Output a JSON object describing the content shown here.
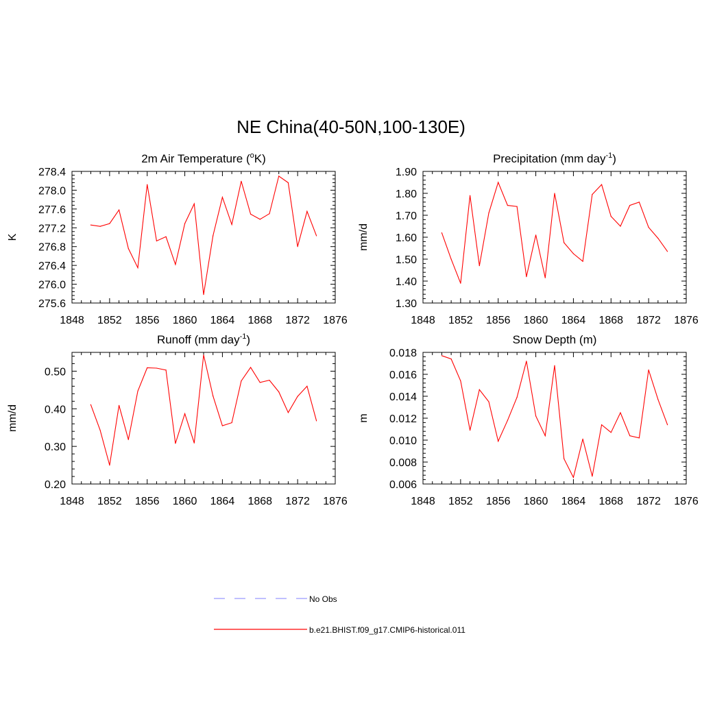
{
  "page": {
    "title": "NE China(40-50N,100-130E)"
  },
  "legend": {
    "placement": "bottom-center",
    "entries": [
      {
        "label": "No Obs",
        "color": "#9a9aff",
        "style": "dashed"
      },
      {
        "label": "b.e21.BHIST.f09_g17.CMIP6-historical.011",
        "color": "#ff0000",
        "style": "solid"
      }
    ]
  },
  "chart_data": [
    {
      "type": "line",
      "title": "2m Air Temperature (",
      "title_sup": "o",
      "title_suffix": "K)",
      "ylabel": "K",
      "xlim": [
        1848,
        1876
      ],
      "ylim": [
        275.6,
        278.4
      ],
      "xticks": [
        "1848",
        "1852",
        "1856",
        "1860",
        "1864",
        "1868",
        "1872",
        "1876"
      ],
      "yticks": [
        "275.6",
        "276.0",
        "276.4",
        "276.8",
        "277.2",
        "277.6",
        "278.0",
        "278.4"
      ],
      "grid": false,
      "line_color": "#ff0000",
      "series": [
        {
          "x": [
            1850,
            1851,
            1852,
            1853,
            1854,
            1855,
            1856,
            1857,
            1858,
            1859,
            1860,
            1861,
            1862,
            1863,
            1864,
            1865,
            1866,
            1867,
            1868,
            1869,
            1870,
            1871,
            1872,
            1873,
            1874
          ],
          "values": [
            277.26,
            277.23,
            277.29,
            277.58,
            276.76,
            276.35,
            278.12,
            276.92,
            277.01,
            276.42,
            277.29,
            277.71,
            275.78,
            277.03,
            277.85,
            277.27,
            278.19,
            277.49,
            277.38,
            277.5,
            278.3,
            278.16,
            276.8,
            277.55,
            277.03
          ]
        }
      ]
    },
    {
      "type": "line",
      "title": "Precipitation (mm day",
      "title_sup": "-1",
      "title_suffix": ")",
      "ylabel": "mm/d",
      "xlim": [
        1848,
        1876
      ],
      "ylim": [
        1.3,
        1.9
      ],
      "xticks": [
        "1848",
        "1852",
        "1856",
        "1860",
        "1864",
        "1868",
        "1872",
        "1876"
      ],
      "yticks": [
        "1.30",
        "1.40",
        "1.50",
        "1.60",
        "1.70",
        "1.80",
        "1.90"
      ],
      "grid": false,
      "line_color": "#ff0000",
      "series": [
        {
          "x": [
            1850,
            1851,
            1852,
            1853,
            1854,
            1855,
            1856,
            1857,
            1858,
            1859,
            1860,
            1861,
            1862,
            1863,
            1864,
            1865,
            1866,
            1867,
            1868,
            1869,
            1870,
            1871,
            1872,
            1873,
            1874
          ],
          "values": [
            1.62,
            1.5,
            1.39,
            1.79,
            1.47,
            1.71,
            1.85,
            1.745,
            1.74,
            1.42,
            1.61,
            1.415,
            1.8,
            1.575,
            1.525,
            1.49,
            1.795,
            1.84,
            1.695,
            1.65,
            1.745,
            1.76,
            1.645,
            1.595,
            1.535
          ]
        }
      ]
    },
    {
      "type": "line",
      "title": "Runoff (mm day",
      "title_sup": "-1",
      "title_suffix": ")",
      "ylabel": "mm/d",
      "xlim": [
        1848,
        1876
      ],
      "ylim": [
        0.2,
        0.55
      ],
      "xticks": [
        "1848",
        "1852",
        "1856",
        "1860",
        "1864",
        "1868",
        "1872",
        "1876"
      ],
      "yticks": [
        "0.20",
        "0.30",
        "0.40",
        "0.50"
      ],
      "ytick_values": [
        0.2,
        0.3,
        0.4,
        0.5
      ],
      "grid": false,
      "line_color": "#ff0000",
      "series": [
        {
          "x": [
            1850,
            1851,
            1852,
            1853,
            1854,
            1855,
            1856,
            1857,
            1858,
            1859,
            1860,
            1861,
            1862,
            1863,
            1864,
            1865,
            1866,
            1867,
            1868,
            1869,
            1870,
            1871,
            1872,
            1873,
            1874
          ],
          "values": [
            0.411,
            0.343,
            0.25,
            0.409,
            0.318,
            0.447,
            0.509,
            0.508,
            0.503,
            0.308,
            0.387,
            0.309,
            0.543,
            0.434,
            0.355,
            0.363,
            0.474,
            0.51,
            0.47,
            0.476,
            0.445,
            0.39,
            0.433,
            0.46,
            0.368
          ]
        }
      ]
    },
    {
      "type": "line",
      "title": "Snow Depth (m)",
      "title_sup": "",
      "title_suffix": "",
      "ylabel": "m",
      "xlim": [
        1848,
        1876
      ],
      "ylim": [
        0.006,
        0.018
      ],
      "xticks": [
        "1848",
        "1852",
        "1856",
        "1860",
        "1864",
        "1868",
        "1872",
        "1876"
      ],
      "yticks": [
        "0.006",
        "0.008",
        "0.010",
        "0.012",
        "0.014",
        "0.016",
        "0.018"
      ],
      "grid": false,
      "line_color": "#ff0000",
      "series": [
        {
          "x": [
            1850,
            1851,
            1852,
            1853,
            1854,
            1855,
            1856,
            1857,
            1858,
            1859,
            1860,
            1861,
            1862,
            1863,
            1864,
            1865,
            1866,
            1867,
            1868,
            1869,
            1870,
            1871,
            1872,
            1873,
            1874
          ],
          "values": [
            0.0177,
            0.0174,
            0.0154,
            0.0109,
            0.0146,
            0.0135,
            0.0099,
            0.0118,
            0.0139,
            0.0172,
            0.0122,
            0.0104,
            0.0168,
            0.0083,
            0.0066,
            0.0101,
            0.0067,
            0.0114,
            0.0107,
            0.0125,
            0.0104,
            0.0102,
            0.0164,
            0.0137,
            0.0114
          ]
        }
      ]
    }
  ]
}
